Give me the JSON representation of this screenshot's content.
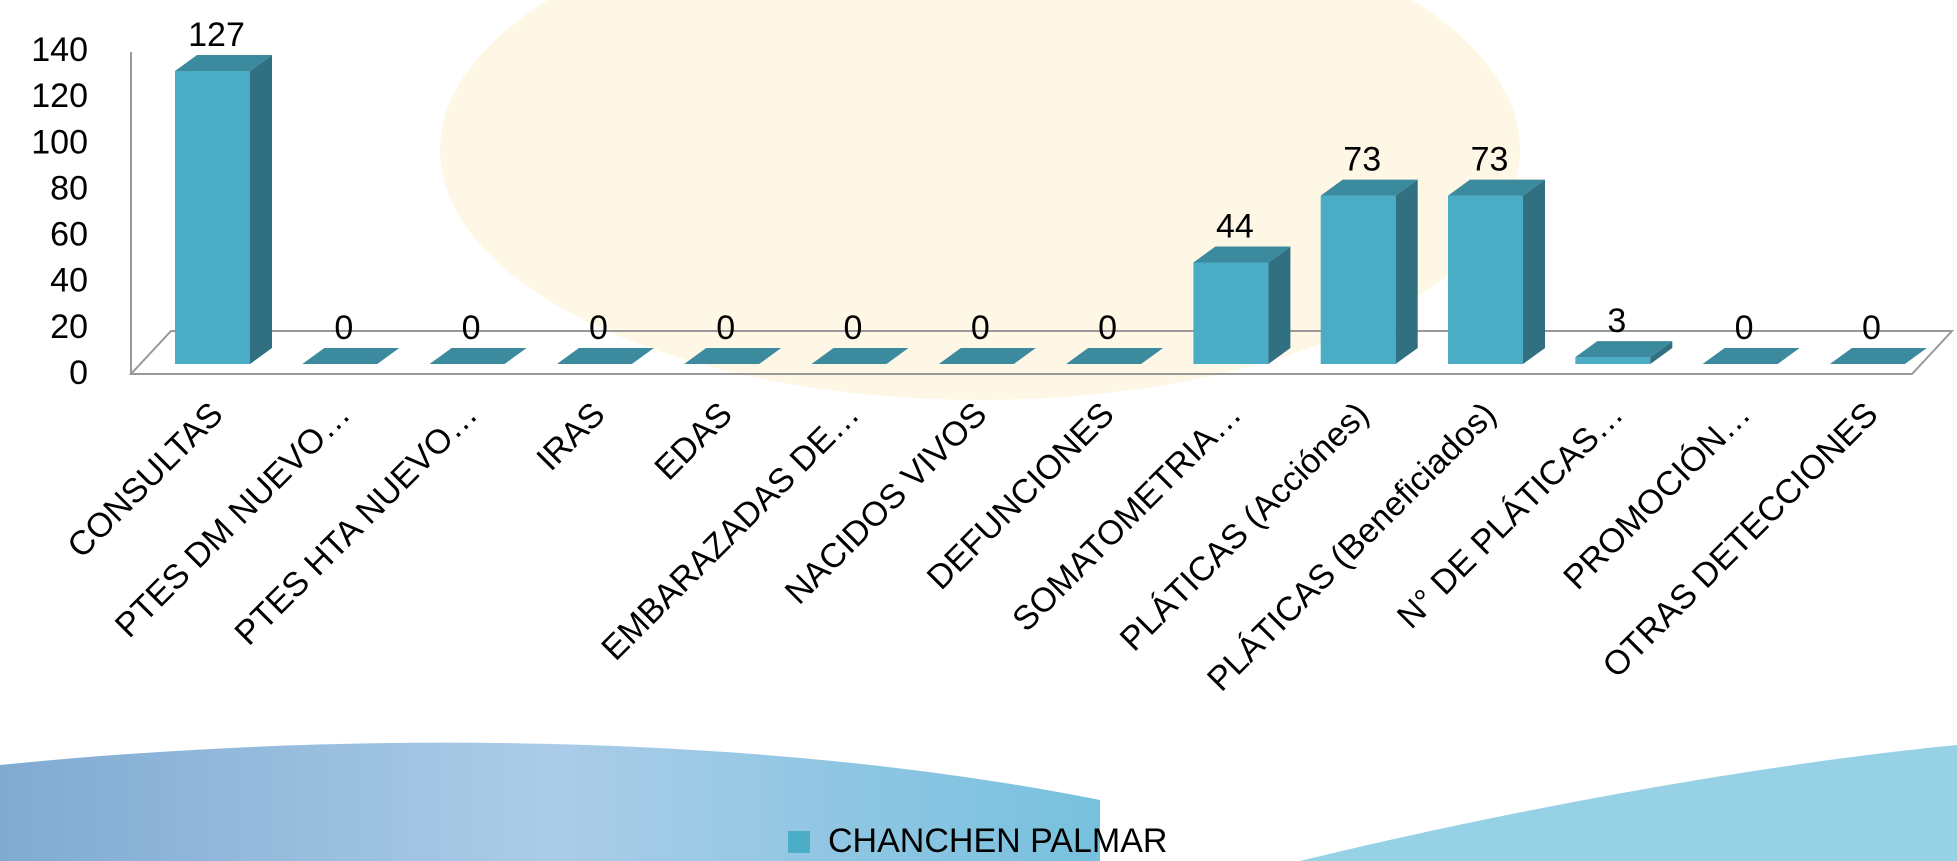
{
  "chart_data": {
    "type": "bar3d",
    "categories": [
      "CONSULTAS",
      "PTES DM NUEVO…",
      "PTES HTA NUEVO…",
      "IRAS",
      "EDAS",
      "EMBARAZADAS DE…",
      "NACIDOS VIVOS",
      "DEFUNCIONES",
      "SOMATOMETRIA…",
      "PLÁTICAS (Acciónes)",
      "PLÁTICAS (Beneficiados)",
      "N° DE PLÁTICAS…",
      "PROMOCIÓN…",
      "OTRAS DETECCIONES"
    ],
    "series": [
      {
        "name": "CHANCHEN PALMAR",
        "color": "#4bacc6",
        "values": [
          127,
          0,
          0,
          0,
          0,
          0,
          0,
          0,
          44,
          73,
          73,
          3,
          0,
          0
        ]
      }
    ],
    "ylim": [
      0,
      140
    ],
    "yticks": [
      0,
      20,
      40,
      60,
      80,
      100,
      120,
      140
    ],
    "legend": "bottom"
  }
}
